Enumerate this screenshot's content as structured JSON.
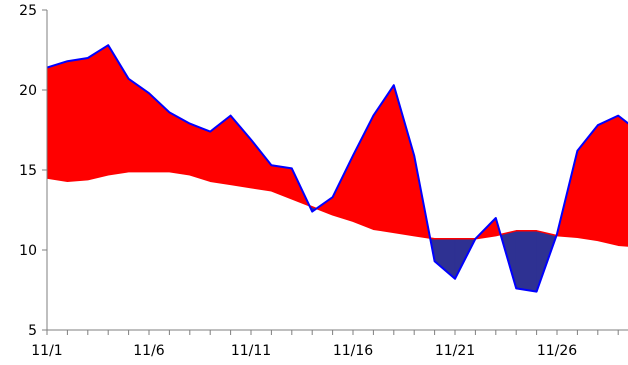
{
  "chart_data": {
    "type": "area",
    "title": "",
    "xlabel": "",
    "ylabel": "",
    "ylim": [
      5,
      25
    ],
    "yticks": [
      5,
      10,
      15,
      20,
      25
    ],
    "grid": false,
    "legend": "none",
    "colors": {
      "above": "#ff0000",
      "below": "#2e3192",
      "upper_line": "#0000ff",
      "lower_line": "#ff0000",
      "axis": "#7f7f7f"
    },
    "x": [
      "11/1",
      "11/2",
      "11/3",
      "11/4",
      "11/5",
      "11/6",
      "11/7",
      "11/8",
      "11/9",
      "11/10",
      "11/11",
      "11/12",
      "11/13",
      "11/14",
      "11/15",
      "11/16",
      "11/17",
      "11/18",
      "11/19",
      "11/20",
      "11/21",
      "11/22",
      "11/23",
      "11/24",
      "11/25",
      "11/26",
      "11/27",
      "11/28",
      "11/29",
      "11/30"
    ],
    "xtick_labels": [
      "11/1",
      "11/6",
      "11/11",
      "11/16",
      "11/21",
      "11/26"
    ],
    "series": [
      {
        "values": [
          21.4,
          21.8,
          22.0,
          22.8,
          20.7,
          19.8,
          18.6,
          17.9,
          17.4,
          18.4,
          16.9,
          15.3,
          15.1,
          12.4,
          13.3,
          15.9,
          18.4,
          20.3,
          15.9,
          9.3,
          8.2,
          10.7,
          12.0,
          7.6,
          7.4,
          11.0,
          16.2,
          17.8,
          18.4,
          17.4
        ]
      },
      {
        "values": [
          14.5,
          14.3,
          14.4,
          14.7,
          14.9,
          14.9,
          14.9,
          14.7,
          14.3,
          14.1,
          13.9,
          13.7,
          13.2,
          12.7,
          12.2,
          11.8,
          11.3,
          11.1,
          10.9,
          10.7,
          10.7,
          10.7,
          10.9,
          11.2,
          11.2,
          10.9,
          10.8,
          10.6,
          10.3,
          10.2
        ]
      }
    ]
  }
}
